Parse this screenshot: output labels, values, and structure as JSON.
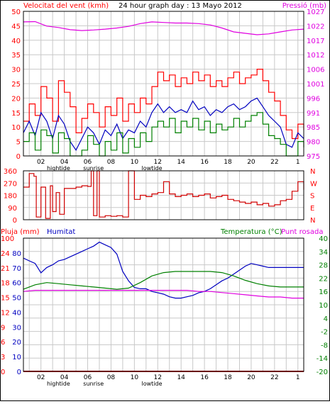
{
  "header": {
    "left_label": "Velocitat del vent (kmh)",
    "title": "24 hour graph day : 13 Mayo 2012",
    "right_label": "Pressió (mb)"
  },
  "colors": {
    "frame": "#000000",
    "grid": "#c8c8c8",
    "wind": "#ff0000",
    "average": "#0000c0",
    "lull": "#008000",
    "pressure": "#e000e0",
    "direction": "#d00000",
    "humidity": "#0000c0",
    "temperature": "#008000",
    "dewpoint": "#e000e0",
    "rain": "#d00000",
    "left_axis_text": "#ff0000",
    "right_axis_text": "#e000e0",
    "humidity_text": "#0000c0",
    "temperature_text": "#008000"
  },
  "x_axis": {
    "hour_labels": [
      "02",
      "04",
      "06",
      "08",
      "10",
      "12",
      "14",
      "16",
      "18",
      "20",
      "22",
      "1"
    ],
    "markers": [
      "hightide",
      "sunrise",
      "lowtide"
    ]
  },
  "panel2": {
    "left_ticks": [
      "360",
      "270",
      "180",
      "90",
      "0"
    ],
    "right_ticks": [
      "N",
      "W",
      "S",
      "E",
      "N"
    ]
  },
  "panel3": {
    "rain_label": "Pluja (mm)",
    "humidity_label": "Humitat",
    "temperature_label": "Temperatura (°C)",
    "dewpoint_label": "Punt rosada",
    "rain_ticks": [
      "100",
      "24",
      "21",
      "18",
      "15",
      "12",
      "9",
      "6",
      "3",
      "0"
    ],
    "humidity_ticks": [
      "100",
      "80",
      "70",
      "60",
      "50",
      "40",
      "30",
      "20",
      "10",
      "0"
    ],
    "right_ticks": [
      "40",
      "34",
      "28",
      "22",
      "16",
      "10",
      "4",
      "-2",
      "-8",
      "-14",
      "-20"
    ]
  },
  "chart_data": [
    {
      "type": "line",
      "title": "24 hour graph day : 13 Mayo 2012",
      "ylabel": "Velocitat del vent (kmh)",
      "y2label": "Pressió (mb)",
      "xlim": [
        0.5,
        24.5
      ],
      "ylim": [
        0,
        50
      ],
      "y2lim": [
        975,
        1027
      ],
      "yticks": [
        0,
        5,
        10,
        15,
        20,
        25,
        30,
        35,
        40,
        45,
        50
      ],
      "y2ticks": [
        975,
        980,
        985,
        991,
        996,
        1001,
        1006,
        1012,
        1017,
        1022,
        1027
      ],
      "grid": true,
      "series": [
        {
          "key": "gust",
          "axis": "left",
          "step": true,
          "x": [
            0.5,
            1.0,
            1.5,
            2.0,
            2.5,
            3.0,
            3.5,
            4.0,
            4.5,
            5.0,
            5.5,
            6.0,
            6.5,
            7.0,
            7.5,
            8.0,
            8.5,
            9.0,
            9.5,
            10.0,
            10.5,
            11.0,
            11.5,
            12.0,
            12.5,
            13.0,
            13.5,
            14.0,
            14.5,
            15.0,
            15.5,
            16.0,
            16.5,
            17.0,
            17.5,
            18.0,
            18.5,
            19.0,
            19.5,
            20.0,
            20.5,
            21.0,
            21.5,
            22.0,
            22.5,
            23.0,
            23.5,
            24.0,
            24.5
          ],
          "values": [
            12,
            18,
            14,
            24,
            20,
            12,
            26,
            22,
            17,
            8,
            13,
            18,
            15,
            10,
            17,
            14,
            20,
            12,
            18,
            15,
            20,
            18,
            24,
            29,
            26,
            28,
            24,
            27,
            25,
            29,
            26,
            28,
            24,
            26,
            24,
            27,
            29,
            25,
            27,
            28,
            30,
            26,
            22,
            19,
            14,
            9,
            6,
            11,
            9
          ]
        },
        {
          "key": "average",
          "axis": "left",
          "x": [
            0.5,
            1.0,
            1.5,
            2.0,
            2.5,
            3.0,
            3.5,
            4.0,
            4.5,
            5.0,
            5.5,
            6.0,
            6.5,
            7.0,
            7.5,
            8.0,
            8.5,
            9.0,
            9.5,
            10.0,
            10.5,
            11.0,
            11.5,
            12.0,
            12.5,
            13.0,
            13.5,
            14.0,
            14.5,
            15.0,
            15.5,
            16.0,
            16.5,
            17.0,
            17.5,
            18.0,
            18.5,
            19.0,
            19.5,
            20.0,
            20.5,
            21.0,
            21.5,
            22.0,
            22.5,
            23.0,
            23.5,
            24.0,
            24.5
          ],
          "values": [
            8,
            12,
            7,
            15,
            12,
            6,
            14,
            11,
            5,
            2,
            6,
            10,
            8,
            4,
            9,
            7,
            11,
            6,
            9,
            8,
            12,
            10,
            15,
            18,
            15,
            17,
            15,
            16,
            15,
            19,
            16,
            17,
            14,
            16,
            15,
            17,
            18,
            16,
            17,
            19,
            20,
            17,
            14,
            12,
            10,
            4,
            3,
            8,
            6
          ]
        },
        {
          "key": "lull",
          "axis": "left",
          "step": true,
          "x": [
            0.5,
            1.0,
            1.5,
            2.0,
            2.5,
            3.0,
            3.5,
            4.0,
            4.5,
            5.0,
            5.5,
            6.0,
            6.5,
            7.0,
            7.5,
            8.0,
            8.5,
            9.0,
            9.5,
            10.0,
            10.5,
            11.0,
            11.5,
            12.0,
            12.5,
            13.0,
            13.5,
            14.0,
            14.5,
            15.0,
            15.5,
            16.0,
            16.5,
            17.0,
            17.5,
            18.0,
            18.5,
            19.0,
            19.5,
            20.0,
            20.5,
            21.0,
            21.5,
            22.0,
            22.5,
            23.0,
            23.5,
            24.0,
            24.5
          ],
          "values": [
            5,
            8,
            2,
            9,
            7,
            1,
            8,
            6,
            0,
            0,
            2,
            7,
            4,
            0,
            5,
            2,
            8,
            1,
            6,
            3,
            8,
            5,
            10,
            12,
            10,
            13,
            8,
            12,
            10,
            13,
            9,
            12,
            8,
            11,
            9,
            10,
            13,
            10,
            12,
            14,
            15,
            11,
            7,
            6,
            4,
            0,
            0,
            5,
            3
          ]
        },
        {
          "key": "pressure",
          "axis": "right",
          "x": [
            0.5,
            1.5,
            2.5,
            3.5,
            4.5,
            5.5,
            6.5,
            7.5,
            8.5,
            9.5,
            10.5,
            11.5,
            12.5,
            13.5,
            14.5,
            15.5,
            16.5,
            17.5,
            18.5,
            19.5,
            20.5,
            21.5,
            22.5,
            23.5,
            24.5
          ],
          "values": [
            1023.2,
            1023.3,
            1021.7,
            1021.2,
            1020.4,
            1020.1,
            1020.3,
            1020.6,
            1021.0,
            1021.6,
            1022.6,
            1023.2,
            1023.0,
            1022.8,
            1022.8,
            1022.6,
            1022.1,
            1021.0,
            1019.6,
            1019.1,
            1018.6,
            1018.9,
            1019.6,
            1020.3,
            1020.6
          ]
        }
      ]
    },
    {
      "type": "line",
      "xlim": [
        0.5,
        24.5
      ],
      "ylim": [
        0,
        360
      ],
      "yticks": [
        0,
        90,
        180,
        270,
        360
      ],
      "grid": true,
      "series": [
        {
          "key": "direction",
          "step": true,
          "x": [
            0.5,
            1.0,
            1.4,
            1.6,
            2.0,
            2.4,
            2.8,
            3.0,
            3.3,
            3.6,
            4.0,
            4.5,
            5.0,
            5.5,
            6.0,
            6.3,
            6.5,
            6.8,
            7.0,
            7.5,
            8.0,
            8.5,
            9.0,
            9.5,
            10.0,
            10.5,
            11.0,
            11.5,
            12.0,
            12.5,
            13.0,
            13.5,
            14.0,
            14.5,
            15.0,
            15.5,
            16.0,
            16.5,
            17.0,
            17.5,
            18.0,
            18.5,
            19.0,
            19.5,
            20.0,
            20.5,
            21.0,
            21.5,
            22.0,
            22.5,
            23.0,
            23.5,
            24.0,
            24.5
          ],
          "values": [
            240,
            340,
            320,
            20,
            240,
            10,
            250,
            60,
            200,
            40,
            230,
            230,
            240,
            250,
            245,
            360,
            30,
            360,
            20,
            30,
            25,
            30,
            20,
            360,
            150,
            180,
            170,
            190,
            200,
            280,
            190,
            170,
            180,
            190,
            170,
            180,
            190,
            160,
            170,
            180,
            150,
            140,
            130,
            120,
            130,
            110,
            120,
            100,
            110,
            140,
            150,
            210,
            280,
            220
          ]
        }
      ]
    },
    {
      "type": "line",
      "ylabel": "Pluja (mm)",
      "y2label": "Temperatura (°C)",
      "xlim": [
        0.5,
        24.5
      ],
      "y2lim": [
        -20,
        40
      ],
      "humidity_lim": [
        0,
        100
      ],
      "y2ticks": [
        -20,
        -14,
        -8,
        -2,
        4,
        10,
        16,
        22,
        28,
        34,
        40
      ],
      "grid": true,
      "series": [
        {
          "key": "humidity",
          "name": "Humitat",
          "axis": "humidity",
          "x": [
            0.5,
            1.0,
            1.5,
            2.0,
            2.5,
            3.0,
            3.5,
            4.0,
            4.5,
            5.0,
            5.5,
            6.0,
            6.5,
            7.0,
            7.5,
            8.0,
            8.5,
            9.0,
            9.5,
            10.0,
            10.5,
            11.0,
            11.5,
            12.0,
            12.5,
            13.0,
            13.5,
            14.0,
            14.5,
            15.0,
            15.5,
            16.0,
            16.5,
            17.0,
            17.5,
            18.0,
            18.5,
            19.0,
            19.5,
            20.0,
            20.5,
            21.0,
            21.5,
            22.0,
            22.5,
            23.0,
            23.5,
            24.0,
            24.5
          ],
          "values": [
            85,
            83,
            81,
            74,
            78,
            80,
            83,
            84,
            86,
            88,
            90,
            92,
            94,
            97,
            95,
            93,
            88,
            75,
            68,
            63,
            62,
            62,
            60,
            59,
            58,
            56,
            55,
            55,
            56,
            57,
            59,
            60,
            62,
            65,
            68,
            70,
            73,
            76,
            79,
            81,
            80,
            79,
            78,
            78,
            78,
            78,
            78,
            78,
            78
          ]
        },
        {
          "key": "temperature",
          "name": "Temperatura (°C)",
          "axis": "right",
          "x": [
            0.5,
            1.5,
            2.5,
            3.5,
            4.5,
            5.5,
            6.5,
            7.5,
            8.5,
            9.5,
            10.5,
            11.5,
            12.5,
            13.5,
            14.5,
            15.5,
            16.5,
            17.5,
            18.5,
            19.5,
            20.5,
            21.5,
            22.5,
            23.5,
            24.5
          ],
          "values": [
            17,
            19,
            20,
            19.5,
            19,
            18.5,
            18,
            17.5,
            17,
            17.5,
            20,
            23,
            24.5,
            25,
            25,
            25,
            25,
            24.5,
            23,
            21,
            19.5,
            18.5,
            18,
            18,
            18
          ]
        },
        {
          "key": "dewpoint",
          "name": "Punt rosada",
          "axis": "right",
          "x": [
            0.5,
            1.5,
            2.5,
            3.5,
            4.5,
            5.5,
            6.5,
            7.5,
            8.5,
            9.5,
            10.5,
            11.5,
            12.5,
            13.5,
            14.5,
            15.5,
            16.5,
            17.5,
            18.5,
            19.5,
            20.5,
            21.5,
            22.5,
            23.5,
            24.5
          ],
          "values": [
            16,
            16.5,
            16.5,
            16.5,
            16.5,
            16.5,
            16.5,
            16.5,
            16.5,
            16.5,
            16.5,
            16.5,
            16.5,
            16.5,
            16.5,
            16,
            16,
            15.5,
            15,
            14.5,
            14,
            13.5,
            13.5,
            13,
            13
          ]
        },
        {
          "key": "rain",
          "name": "Pluja (mm)",
          "axis": "left",
          "x": [
            0.5,
            24.5
          ],
          "values": [
            0,
            0
          ]
        }
      ]
    }
  ]
}
